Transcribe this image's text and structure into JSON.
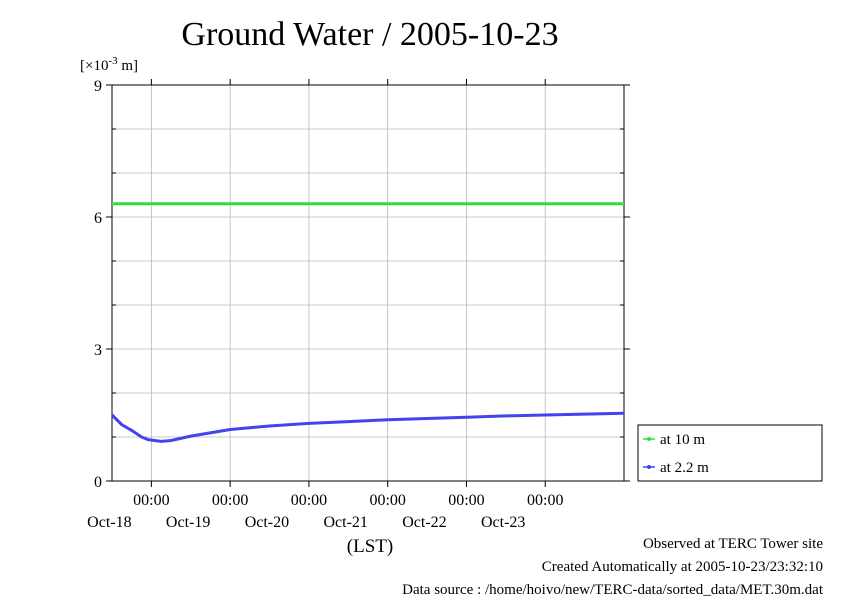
{
  "chart_data": {
    "type": "line",
    "title": "Ground Water / 2005-10-23",
    "y_unit_label": {
      "prefix": "[×10",
      "exponent": "-3",
      "suffix": " m]"
    },
    "xlabel": "(LST)",
    "ylim": [
      0,
      9
    ],
    "y_ticks": [
      0,
      3,
      6,
      9
    ],
    "x_range": [
      "2005-10-17 12:00",
      "2005-10-24 00:00"
    ],
    "x_ticks": [
      {
        "time": "2005-10-18 00:00",
        "label": "00:00",
        "date": "Oct-18"
      },
      {
        "time": "2005-10-19 00:00",
        "label": "00:00",
        "date": "Oct-19"
      },
      {
        "time": "2005-10-20 00:00",
        "label": "00:00",
        "date": "Oct-20"
      },
      {
        "time": "2005-10-21 00:00",
        "label": "00:00",
        "date": "Oct-21"
      },
      {
        "time": "2005-10-22 00:00",
        "label": "00:00",
        "date": "Oct-22"
      },
      {
        "time": "2005-10-23 00:00",
        "label": "00:00",
        "date": "Oct-23"
      }
    ],
    "grid": true,
    "legend_position": "right-bottom",
    "series": [
      {
        "name": "at 10 m",
        "color": "#33dd33",
        "points": [
          [
            "2005-10-17 12:00",
            6.3
          ],
          [
            "2005-10-24 00:00",
            6.3
          ]
        ]
      },
      {
        "name": "at 2.2 m",
        "color": "#4444ee",
        "points": [
          [
            "2005-10-17 12:00",
            1.5
          ],
          [
            "2005-10-17 15:00",
            1.28
          ],
          [
            "2005-10-17 18:00",
            1.15
          ],
          [
            "2005-10-17 21:00",
            1.0
          ],
          [
            "2005-10-17 23:00",
            0.94
          ],
          [
            "2005-10-18 03:00",
            0.9
          ],
          [
            "2005-10-18 06:00",
            0.92
          ],
          [
            "2005-10-18 12:00",
            1.02
          ],
          [
            "2005-10-19 00:00",
            1.17
          ],
          [
            "2005-10-19 12:00",
            1.25
          ],
          [
            "2005-10-20 00:00",
            1.31
          ],
          [
            "2005-10-20 12:00",
            1.35
          ],
          [
            "2005-10-21 00:00",
            1.39
          ],
          [
            "2005-10-21 12:00",
            1.42
          ],
          [
            "2005-10-22 00:00",
            1.45
          ],
          [
            "2005-10-22 12:00",
            1.48
          ],
          [
            "2005-10-23 00:00",
            1.5
          ],
          [
            "2005-10-23 12:00",
            1.52
          ],
          [
            "2005-10-24 00:00",
            1.54
          ]
        ]
      }
    ]
  },
  "footer": {
    "observed": "Observed at TERC Tower site",
    "created": "Created Automatically at 2005-10-23/23:32:10",
    "source": "Data source : /home/hoivo/new/TERC-data/sorted_data/MET.30m.dat"
  }
}
